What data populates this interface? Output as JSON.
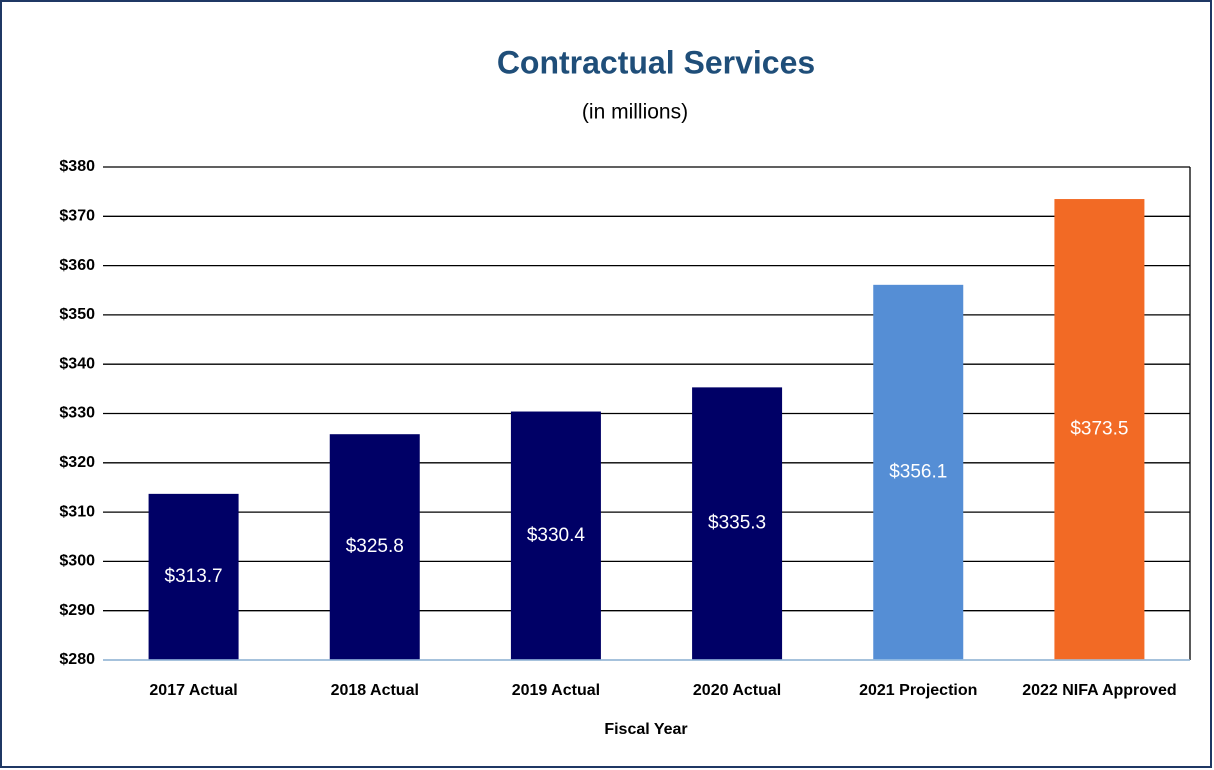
{
  "chart_data": {
    "type": "bar",
    "title": "Contractual Services",
    "subtitle": "(in millions)",
    "x_label": "Fiscal Year",
    "categories": [
      "2017 Actual",
      "2018 Actual",
      "2019 Actual",
      "2020 Actual",
      "2021 Projection",
      "2022 NIFA Approved"
    ],
    "values": [
      313.7,
      325.8,
      330.4,
      335.3,
      356.1,
      373.5
    ],
    "value_labels": [
      "$313.7",
      "$325.8",
      "$330.4",
      "$335.3",
      "$356.1",
      "$373.5"
    ],
    "colors": [
      "#000066",
      "#000066",
      "#000066",
      "#000066",
      "#558ed5",
      "#f26a25"
    ],
    "ylim": [
      280,
      380
    ],
    "yticks": [
      {
        "value": 280,
        "label": "$280"
      },
      {
        "value": 290,
        "label": "$290"
      },
      {
        "value": 300,
        "label": "$300"
      },
      {
        "value": 310,
        "label": "$310"
      },
      {
        "value": 320,
        "label": "$320"
      },
      {
        "value": 330,
        "label": "$330"
      },
      {
        "value": 340,
        "label": "$340"
      },
      {
        "value": 350,
        "label": "$350"
      },
      {
        "value": 360,
        "label": "$360"
      },
      {
        "value": 370,
        "label": "$370"
      },
      {
        "value": 380,
        "label": "$380"
      }
    ],
    "grid": true
  }
}
